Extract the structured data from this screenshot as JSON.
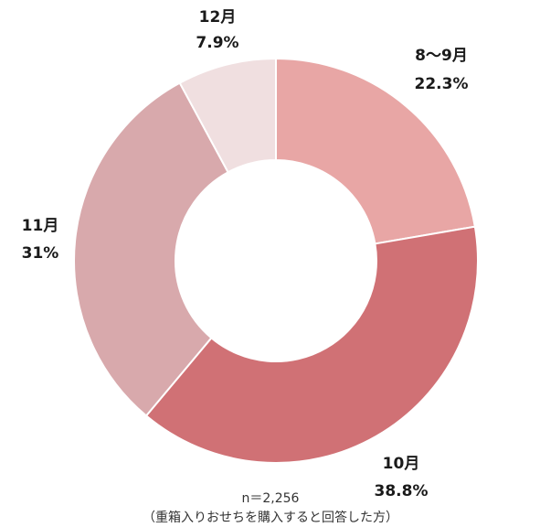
{
  "chart_data": {
    "type": "pie",
    "donut": true,
    "categories": [
      "8〜9月",
      "10月",
      "11月",
      "12月"
    ],
    "values": [
      22.3,
      38.8,
      31,
      7.9
    ],
    "value_labels": [
      "22.3%",
      "38.8%",
      "31%",
      "7.9%"
    ],
    "colors": [
      "#e8a6a5",
      "#d07175",
      "#d8a9ac",
      "#f0dfe0"
    ],
    "start_angle_deg": 0,
    "direction": "clockwise",
    "title": "",
    "legend": "none"
  },
  "notes": {
    "sample": "n＝2,256",
    "condition": "（重箱入りおせちを購入すると回答した方）"
  }
}
